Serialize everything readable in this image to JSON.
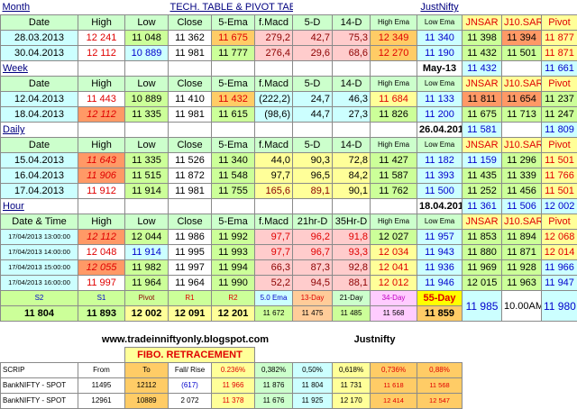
{
  "header": {
    "section": "Month",
    "title": "TECH. TABLE  &  PIVOT TABLE",
    "link": "JustNifty"
  },
  "cols_std": [
    "Date",
    "High",
    "Low",
    "Close",
    "5-Ema",
    "f.Macd",
    "5-D",
    "14-D",
    "High Ema",
    "Low Ema",
    "JNSAR",
    "J10.SAR",
    "Pivot"
  ],
  "cols_hour": [
    "Date & Time",
    "High",
    "Low",
    "Close",
    "5-Ema",
    "f.Macd",
    "21hr-D",
    "35Hr-D",
    "High Ema",
    "Low Ema",
    "JNSAR",
    "J10.SAR",
    "Pivot"
  ],
  "month": {
    "rows": [
      [
        "28.03.2013",
        "12 241",
        "11 048",
        "11 362",
        "11 675",
        "42,7",
        "75,3",
        "12 349",
        "11 340",
        "11 398",
        "11 394",
        "11 877",
        "",
        ""
      ],
      [
        "30.04.2013",
        "12 112",
        "10 889",
        "11 981",
        "11 777",
        "29,6",
        "68,6",
        "12 270",
        "11 190",
        "11 432",
        "11 501",
        "11 871",
        "",
        ""
      ]
    ],
    "rows_macd": [
      "279,2",
      "276,4"
    ],
    "rows_dat": [
      [
        "28.03.2013",
        "12 241",
        "11 048",
        "11 362",
        "11 675",
        "279,2",
        "42,7",
        "75,3",
        "12 349",
        "11 340",
        "11 398",
        "11 394",
        "11 877"
      ],
      [
        "30.04.2013",
        "12 112",
        "10 889",
        "11 981",
        "11 777",
        "276,4",
        "29,6",
        "68,6",
        "12 270",
        "11 190",
        "11 432",
        "11 501",
        "11 871"
      ]
    ]
  },
  "week": {
    "label": "Week",
    "tag": "May-13",
    "sar": "11 432",
    "pivot": "11 661",
    "rows": [
      [
        "12.04.2013",
        "11 443",
        "10 889",
        "11 410",
        "11 432",
        "(222,2)",
        "24,7",
        "46,3",
        "11 684",
        "11 133",
        "11 811",
        "11 654",
        "11 237"
      ],
      [
        "18.04.2013",
        "12 112",
        "11 335",
        "11 981",
        "11 615",
        "(98,6)",
        "44,7",
        "27,3",
        "11 826",
        "11 200",
        "11 675",
        "11 713",
        "11 247"
      ]
    ]
  },
  "daily": {
    "label": "Daily",
    "tag": "26.04.2013",
    "sar": "11 581",
    "pivot": "11 809",
    "rows": [
      [
        "15.04.2013",
        "11 643",
        "11 335",
        "11 526",
        "11 340",
        "44,0",
        "90,3",
        "72,8",
        "11 427",
        "11 182",
        "11 159",
        "11 296",
        "11 501"
      ],
      [
        "16.04.2013",
        "11 906",
        "11 515",
        "11 872",
        "11 548",
        "97,7",
        "96,5",
        "84,2",
        "11 587",
        "11 393",
        "11 435",
        "11 339",
        "11 766"
      ],
      [
        "17.04.2013",
        "11 912",
        "11 914",
        "11 981",
        "11 755",
        "165,6",
        "89,1",
        "90,1",
        "11 762",
        "11 500",
        "11 252",
        "11 456",
        "11 501"
      ]
    ]
  },
  "hour": {
    "label": "Hour",
    "tag": "18.04.2013",
    "sar1": "11 361",
    "sar2": "11 506",
    "pivot": "12 002",
    "rows": [
      [
        "17/04/2013 13:00:00",
        "12 112",
        "12 044",
        "11 986",
        "11 992",
        "97,7",
        "96,2",
        "91,8",
        "12 027",
        "11 957",
        "11 853",
        "11 894",
        "12 068"
      ],
      [
        "17/04/2013 14:00:00",
        "12 048",
        "11 914",
        "11 995",
        "11 993",
        "97,7",
        "96,7",
        "93,3",
        "12 034",
        "11 943",
        "11 880",
        "11 871",
        "12 014"
      ],
      [
        "17/04/2013 15:00:00",
        "12 055",
        "11 982",
        "11 997",
        "11 994",
        "66,3",
        "87,3",
        "92,8",
        "12 041",
        "11 936",
        "11 969",
        "11 928",
        "11 966"
      ],
      [
        "17/04/2013 16:00:00",
        "11 997",
        "11 964",
        "11 964",
        "11 990",
        "52,2",
        "94,5",
        "88,1",
        "12 012",
        "11 946",
        "12 015",
        "11 963",
        "11 947"
      ]
    ]
  },
  "levels": {
    "labels": [
      "S2",
      "S1",
      "Pivot",
      "R1",
      "R2",
      "5.0 Ema",
      "13-Day",
      "21-Day",
      "34-Day",
      "55-Day"
    ],
    "values": [
      "11 804",
      "11 893",
      "12 002",
      "12 091",
      "12 201",
      "11 672",
      "11 475",
      "11 485",
      "11 568",
      "11 859"
    ],
    "extra_value": "11 985",
    "time": "10.00AM",
    "extra_pivot": "11 980"
  },
  "footer": {
    "blog": "www.tradeinniftyonly.blogspot.com",
    "brand": "Justnifty",
    "fibo_title": "FIBO. RETRACEMENT",
    "headers": [
      "SCRIP",
      "From",
      "To",
      "Fall/ Rise",
      "0.236%",
      "0,382%",
      "0,50%",
      "0,618%",
      "0,736%",
      "0,88%"
    ],
    "rows": [
      [
        "BankNIFTY - SPOT",
        "11495",
        "12112",
        "(617)",
        "11 966",
        "11 876",
        "11 804",
        "11 731",
        "11 618",
        "11 568"
      ],
      [
        "BankNIFTY - SPOT",
        "12961",
        "10889",
        "2 072",
        "11 378",
        "11 676",
        "11 925",
        "12 170",
        "12 414",
        "12 547"
      ]
    ]
  }
}
